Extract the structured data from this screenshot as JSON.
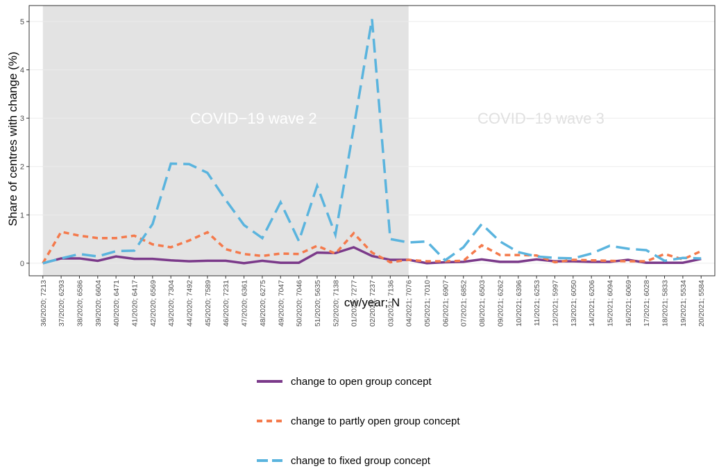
{
  "chart_data": {
    "type": "line",
    "y_label": "Share of centres with change (%)",
    "x_label": "cw/year; N",
    "categories": [
      "36/2020; 7213",
      "37/2020; 6293",
      "38/2020; 6586",
      "39/2020; 6604",
      "40/2020; 6471",
      "41/2020; 6417",
      "42/2020; 6569",
      "43/2020; 7304",
      "44/2020; 7492",
      "45/2020; 7589",
      "46/2020; 7231",
      "47/2020; 6361",
      "48/2020; 6275",
      "49/2020; 7047",
      "50/2020; 7046",
      "51/2020; 5635",
      "52/2020; 7138",
      "01/2021; 7277",
      "02/2021; 7237",
      "03/2021; 7136",
      "04/2021; 7076",
      "05/2021; 7010",
      "06/2021; 6907",
      "07/2021; 6852",
      "08/2021; 6503",
      "09/2021; 6262",
      "10/2021; 6396",
      "11/2021; 6253",
      "12/2021; 5997",
      "13/2021; 6050",
      "14/2021; 6206",
      "15/2021; 6094",
      "16/2021; 6069",
      "17/2021; 6028",
      "18/2021; 5833",
      "19/2021; 5534",
      "20/2021; 5584"
    ],
    "series": [
      {
        "name": "change to open group concept",
        "color": "#7b3a8a",
        "dash": "solid",
        "values": [
          0,
          0.1,
          0.1,
          0.05,
          0.14,
          0.09,
          0.09,
          0.06,
          0.04,
          0.05,
          0.05,
          0,
          0.05,
          0.01,
          0.01,
          0.22,
          0.21,
          0.33,
          0.15,
          0.07,
          0.07,
          0,
          0.02,
          0.03,
          0.08,
          0.03,
          0.03,
          0.08,
          0.04,
          0.04,
          0.03,
          0.03,
          0.07,
          0.01,
          0.01,
          0.01,
          0.09
        ]
      },
      {
        "name": "change to partly open group concept",
        "color": "#f47a4c",
        "dash": "short",
        "values": [
          0,
          0.65,
          0.57,
          0.52,
          0.52,
          0.57,
          0.39,
          0.33,
          0.47,
          0.64,
          0.29,
          0.19,
          0.15,
          0.2,
          0.19,
          0.36,
          0.2,
          0.62,
          0.22,
          0.02,
          0.07,
          0.04,
          0.04,
          0.05,
          0.37,
          0.17,
          0.17,
          0.16,
          0.02,
          0.07,
          0.06,
          0.05,
          0.04,
          0.04,
          0.19,
          0.08,
          0.25
        ]
      },
      {
        "name": "change to fixed group concept",
        "color": "#5ab4de",
        "dash": "long",
        "values": [
          0,
          0.1,
          0.19,
          0.14,
          0.25,
          0.26,
          0.81,
          2.06,
          2.05,
          1.87,
          1.31,
          0.79,
          0.52,
          1.26,
          0.46,
          1.6,
          0.59,
          2.8,
          5.05,
          0.5,
          0.43,
          0.45,
          0.06,
          0.33,
          0.81,
          0.45,
          0.23,
          0.14,
          0.11,
          0.1,
          0.2,
          0.36,
          0.3,
          0.27,
          0.05,
          0.11,
          0.1
        ]
      }
    ],
    "ylim": [
      -0.26,
      5.33
    ],
    "yticks": [
      0,
      1,
      2,
      3,
      4,
      5
    ],
    "grid": true,
    "annotations": [
      {
        "label": "COVID−19 wave 2",
        "start": "36/2020; 7213",
        "end": "04/2021; 7076",
        "shaded": true
      },
      {
        "label": "COVID−19 wave 3",
        "start": "04/2021; 7076",
        "end": "20/2021; 5584",
        "shaded": false
      }
    ],
    "legend": "bottom"
  }
}
